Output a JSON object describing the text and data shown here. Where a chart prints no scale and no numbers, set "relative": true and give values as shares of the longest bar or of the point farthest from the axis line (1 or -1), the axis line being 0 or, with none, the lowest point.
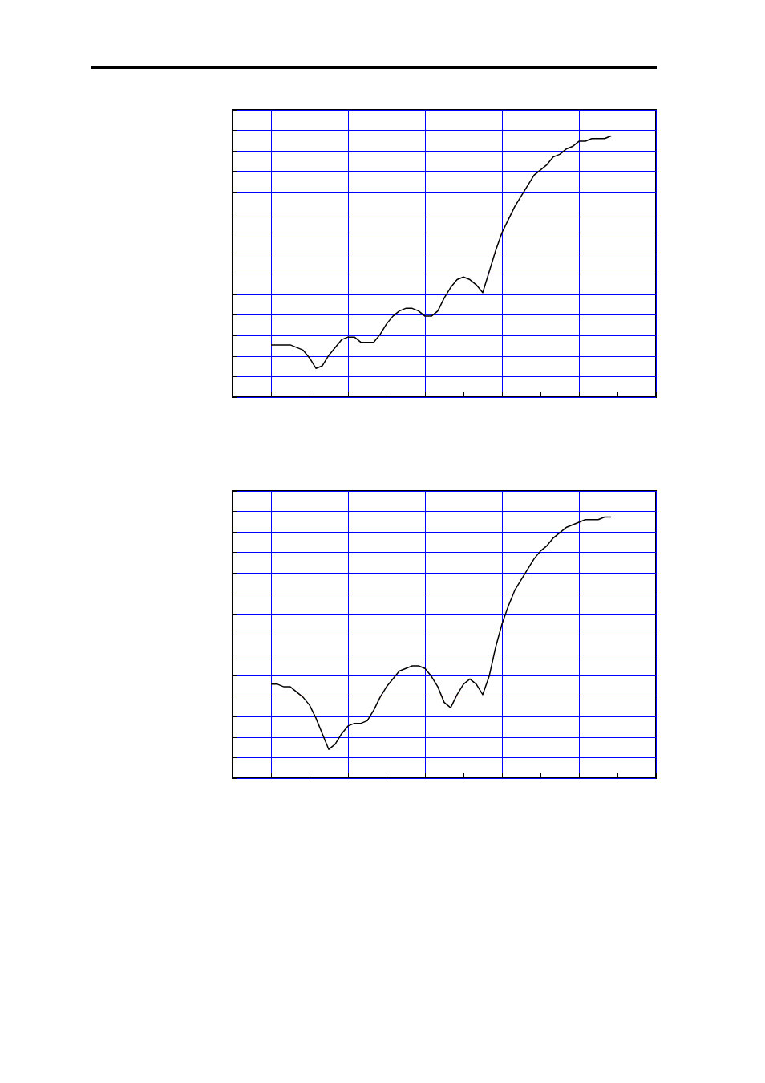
{
  "chart_data": [
    {
      "type": "line",
      "relative": true,
      "grid": true,
      "tick_labels": false,
      "marker": "none",
      "color": "#000000",
      "categories": [
        null,
        null,
        null,
        null,
        null,
        null,
        null,
        null,
        null,
        null,
        null,
        null,
        null,
        null,
        null,
        null,
        null,
        null,
        null,
        null,
        null,
        null,
        null,
        null,
        null,
        null,
        null,
        null,
        null,
        null,
        null,
        null,
        null,
        null,
        null,
        null,
        null,
        null,
        null,
        null,
        null,
        null,
        null,
        null,
        null,
        null,
        null,
        null,
        null,
        null,
        null,
        null,
        null,
        null,
        null,
        null,
        null,
        null,
        null,
        null,
        null,
        null,
        null,
        null,
        null,
        null,
        null
      ],
      "values": [
        null,
        null,
        null,
        null,
        null,
        null,
        0.2,
        0.2,
        0.2,
        0.2,
        0.19,
        0.18,
        0.15,
        0.11,
        0.12,
        0.16,
        0.19,
        0.22,
        0.23,
        0.23,
        0.21,
        0.21,
        0.21,
        0.24,
        0.28,
        0.31,
        0.33,
        0.34,
        0.34,
        0.33,
        0.31,
        0.31,
        0.33,
        0.38,
        0.42,
        0.45,
        0.46,
        0.45,
        0.43,
        0.4,
        0.48,
        0.56,
        0.63,
        0.68,
        0.73,
        0.77,
        0.81,
        0.85,
        0.87,
        0.89,
        0.92,
        0.93,
        0.95,
        0.96,
        0.98,
        0.98,
        0.99,
        0.99,
        0.99,
        1,
        null,
        null,
        null,
        null,
        null,
        null,
        null
      ]
    },
    {
      "type": "line",
      "relative": true,
      "grid": true,
      "tick_labels": false,
      "marker": "none",
      "color": "#000000",
      "categories": [
        null,
        null,
        null,
        null,
        null,
        null,
        null,
        null,
        null,
        null,
        null,
        null,
        null,
        null,
        null,
        null,
        null,
        null,
        null,
        null,
        null,
        null,
        null,
        null,
        null,
        null,
        null,
        null,
        null,
        null,
        null,
        null,
        null,
        null,
        null,
        null,
        null,
        null,
        null,
        null,
        null,
        null,
        null,
        null,
        null,
        null,
        null,
        null,
        null,
        null,
        null,
        null,
        null,
        null,
        null,
        null,
        null,
        null,
        null,
        null,
        null,
        null,
        null,
        null,
        null,
        null,
        null
      ],
      "values": [
        null,
        null,
        null,
        null,
        null,
        null,
        0.36,
        0.36,
        0.35,
        0.35,
        0.33,
        0.31,
        0.28,
        0.23,
        0.17,
        0.11,
        0.13,
        0.17,
        0.2,
        0.21,
        0.21,
        0.22,
        0.26,
        0.31,
        0.35,
        0.38,
        0.41,
        0.42,
        0.43,
        0.43,
        0.42,
        0.39,
        0.35,
        0.29,
        0.27,
        0.32,
        0.36,
        0.38,
        0.36,
        0.32,
        0.39,
        0.5,
        0.59,
        0.66,
        0.72,
        0.76,
        0.8,
        0.84,
        0.87,
        0.89,
        0.92,
        0.94,
        0.96,
        0.97,
        0.98,
        0.99,
        0.99,
        0.99,
        1,
        1,
        null,
        null,
        null,
        null,
        null,
        null,
        null
      ]
    }
  ]
}
